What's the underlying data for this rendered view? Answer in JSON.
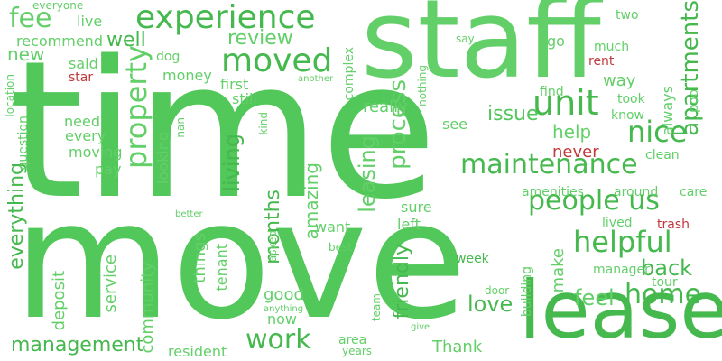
{
  "palette": {
    "green_1": "#52c75a",
    "green_2": "#45b84e",
    "green_3": "#63cf69",
    "red": "#c0393b"
  },
  "words": [
    "time",
    "move",
    "staff",
    "lease",
    "experience",
    "unit",
    "moved",
    "maintenance",
    "property",
    "people us",
    "helpful",
    "apartments",
    "nice",
    "review",
    "fee",
    "issue",
    "process",
    "work",
    "living",
    "leasing",
    "help",
    "home",
    "back",
    "love",
    "feel",
    "friendly",
    "management",
    "everything",
    "months",
    "amazing",
    "really",
    "well",
    "new",
    "community",
    "deposit",
    "service",
    "recommend",
    "said",
    "money",
    "first",
    "still",
    "need",
    "every",
    "moving",
    "pay",
    "looking",
    "things",
    "tenant",
    "good",
    "now",
    "want",
    "sure",
    "left",
    "week",
    "make",
    "manager",
    "tour",
    "lived",
    "trash",
    "never",
    "rent",
    "star",
    "dog",
    "live",
    "everyone",
    "complex",
    "nothing",
    "say",
    "two",
    "go",
    "much",
    "way",
    "find",
    "took",
    "know",
    "always",
    "pool",
    "clean",
    "see",
    "amenities",
    "around",
    "care",
    "kind",
    "nan",
    "another",
    "location",
    "question",
    "better",
    "best",
    "asked",
    "anything",
    "area",
    "years",
    "give",
    "team",
    "door",
    "building",
    "resident",
    "Thank"
  ]
}
